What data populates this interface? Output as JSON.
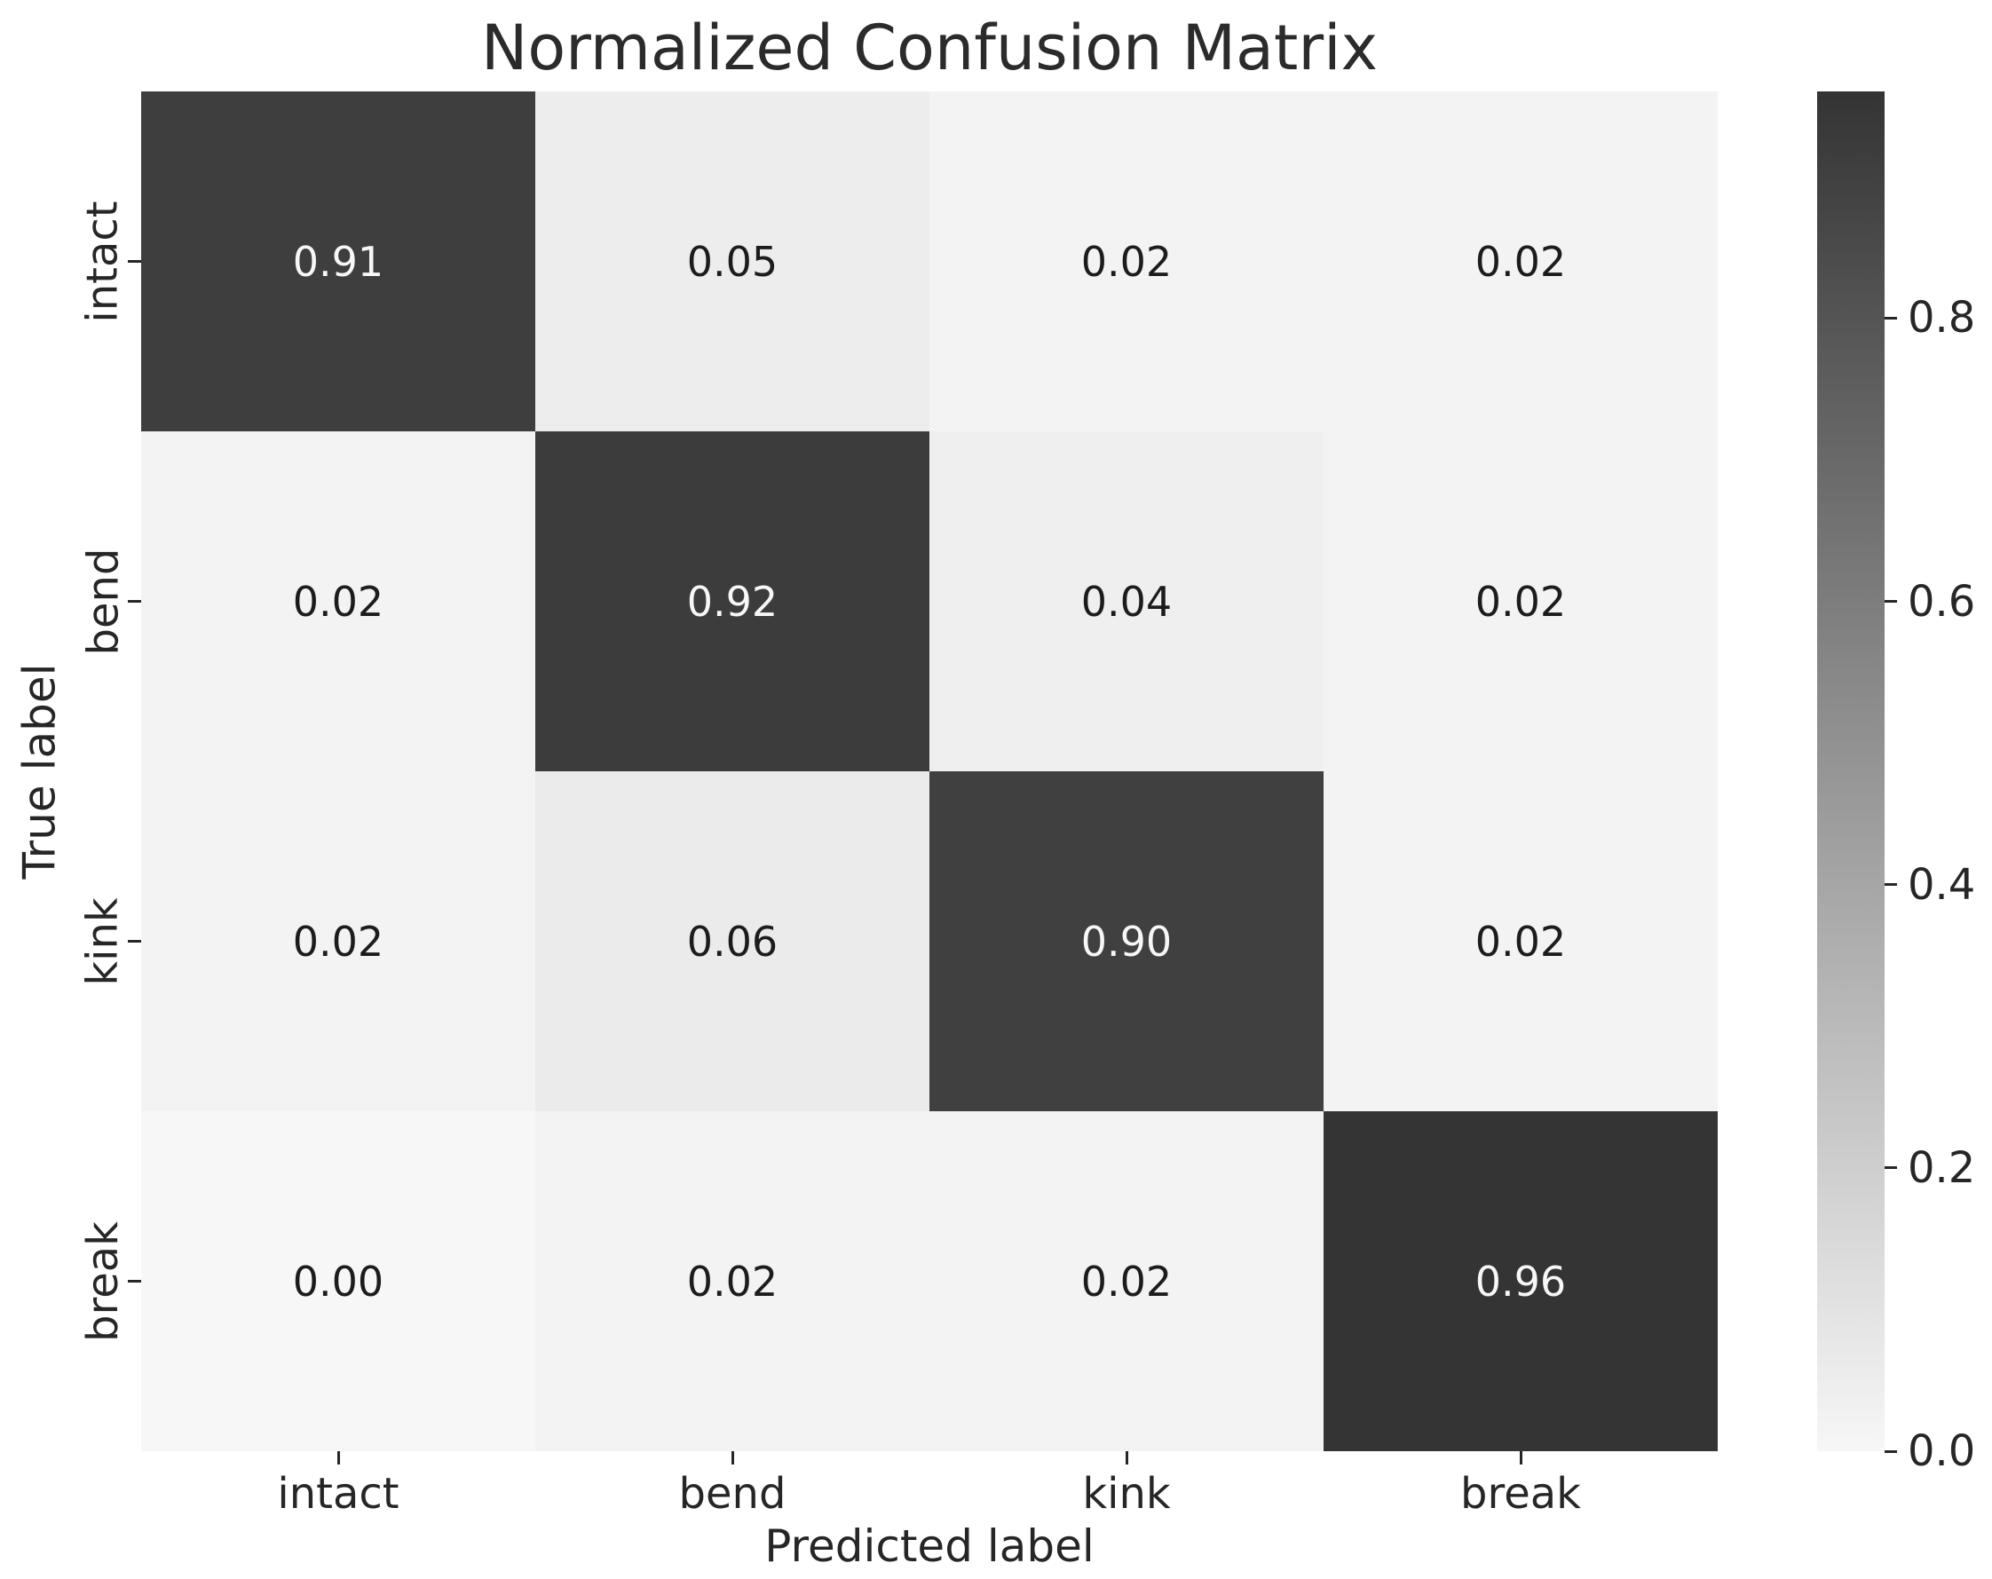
{
  "chart_data": {
    "type": "heatmap",
    "title": "Normalized Confusion Matrix",
    "xlabel": "Predicted label",
    "ylabel": "True label",
    "x_categories": [
      "intact",
      "bend",
      "kink",
      "break"
    ],
    "y_categories": [
      "intact",
      "bend",
      "kink",
      "break"
    ],
    "matrix": [
      [
        0.91,
        0.05,
        0.02,
        0.02
      ],
      [
        0.02,
        0.92,
        0.04,
        0.02
      ],
      [
        0.02,
        0.06,
        0.9,
        0.02
      ],
      [
        0.0,
        0.02,
        0.02,
        0.96
      ]
    ],
    "cell_labels": [
      [
        "0.91",
        "0.05",
        "0.02",
        "0.02"
      ],
      [
        "0.02",
        "0.92",
        "0.04",
        "0.02"
      ],
      [
        "0.02",
        "0.06",
        "0.90",
        "0.02"
      ],
      [
        "0.00",
        "0.02",
        "0.02",
        "0.96"
      ]
    ],
    "colorbar": {
      "vmin": 0.0,
      "vmax": 0.96,
      "ticks": [
        0.0,
        0.2,
        0.4,
        0.6,
        0.8
      ],
      "tick_labels": [
        "0.0",
        "0.2",
        "0.4",
        "0.6",
        "0.8"
      ],
      "position": "right",
      "cmap": "Greys"
    },
    "colors": {
      "cmap_low": "#f7f7f7",
      "cmap_high": "#343434",
      "annot_on_dark": "#f7f7f7",
      "annot_on_light": "#1c1c1c",
      "axis_text": "#262626",
      "background": "#ffffff"
    },
    "grid": false,
    "legend": false
  }
}
